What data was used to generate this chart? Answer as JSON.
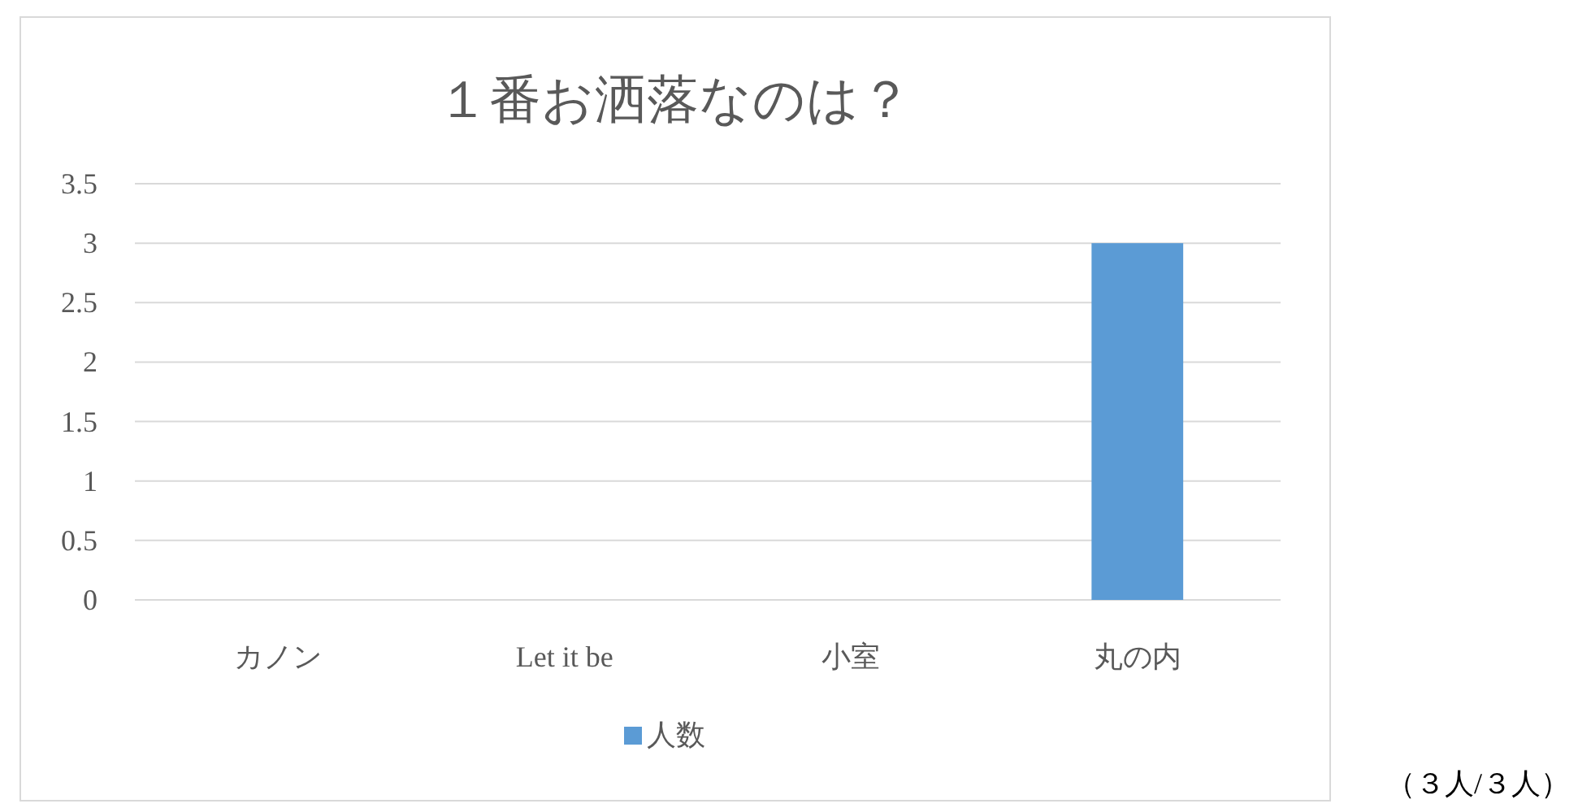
{
  "chart_data": {
    "type": "bar",
    "title": "１番お洒落なのは？",
    "categories": [
      "カノン",
      "Let it be",
      "小室",
      "丸の内"
    ],
    "series": [
      {
        "name": "人数",
        "color": "#5b9bd5",
        "values": [
          0,
          0,
          0,
          3
        ]
      }
    ],
    "ylim": [
      0,
      3.5
    ],
    "yticks": [
      0,
      0.5,
      1,
      1.5,
      2,
      2.5,
      3,
      3.5
    ],
    "grid": "y",
    "legend": "bottom",
    "annotations": [
      "（３人/３人）"
    ]
  }
}
